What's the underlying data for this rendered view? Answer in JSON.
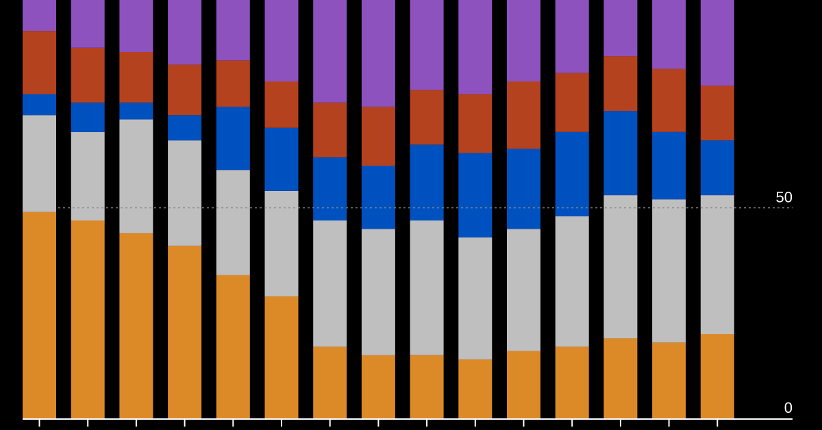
{
  "chart_data": {
    "type": "bar",
    "stacked": true,
    "categories": [
      "",
      "",
      "",
      "",
      "",
      "",
      "",
      "",
      "",
      "",
      "",
      "",
      "",
      "",
      ""
    ],
    "series": [
      {
        "color": "#dc8a27",
        "values": [
          49,
          47,
          44,
          41,
          34,
          29,
          17,
          15,
          15,
          14,
          16,
          17,
          19,
          18,
          20
        ]
      },
      {
        "color": "#bfbfbf",
        "values": [
          23,
          21,
          27,
          25,
          25,
          25,
          30,
          30,
          32,
          29,
          29,
          31,
          34,
          34,
          33
        ]
      },
      {
        "color": "#0051c0",
        "values": [
          5,
          7,
          4,
          6,
          15,
          15,
          15,
          15,
          18,
          20,
          19,
          20,
          20,
          16,
          13
        ]
      },
      {
        "color": "#b5421e",
        "values": [
          15,
          13,
          12,
          12,
          11,
          11,
          13,
          14,
          13,
          14,
          16,
          14,
          13,
          15,
          13
        ]
      },
      {
        "color": "#8e52bf",
        "values": [
          8,
          12,
          13,
          16,
          15,
          20,
          25,
          26,
          22,
          23,
          20,
          18,
          14,
          17,
          21
        ]
      }
    ],
    "yticks": [
      0,
      50
    ],
    "ylim": [
      0,
      100
    ],
    "reference_line": 50,
    "grid": false,
    "legend": "none"
  }
}
